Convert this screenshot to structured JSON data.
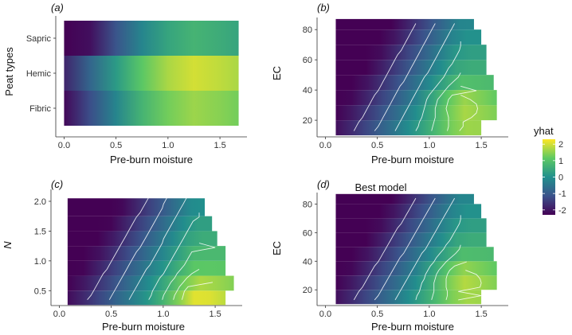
{
  "legend": {
    "title": "yhat",
    "range": [
      -2.3,
      2.3
    ],
    "ticks": [
      2,
      1,
      0,
      -1,
      -2
    ],
    "colors": [
      "#440154",
      "#3b528b",
      "#21908d",
      "#5dc963",
      "#fde725"
    ]
  },
  "chart_data": [
    {
      "type": "heatmap",
      "panel_label": "(a)",
      "title": "",
      "xlabel": "Pre-burn moisture",
      "ylabel": "Peat types",
      "xlim": [
        -0.08,
        1.76
      ],
      "x_ticks": [
        0.0,
        0.5,
        1.0,
        1.5
      ],
      "x_tick_labels": [
        "0.0",
        "0.5",
        "1.0",
        "1.5"
      ],
      "categories": [
        "Sapric",
        "Hemic",
        "Fibric"
      ],
      "x_range": [
        0.0,
        1.68
      ],
      "profile": [
        {
          "x": 0.0,
          "value": -2.2
        },
        {
          "x": 0.25,
          "value": -1.2
        },
        {
          "x": 0.5,
          "value": -0.2
        },
        {
          "x": 0.75,
          "value": 0.7
        },
        {
          "x": 1.0,
          "value": 1.3
        },
        {
          "x": 1.25,
          "value": 1.6
        },
        {
          "x": 1.5,
          "value": 1.45
        },
        {
          "x": 1.68,
          "value": 1.3
        }
      ],
      "offsets": {
        "Sapric": -0.9,
        "Hemic": 0.4,
        "Fibric": 0.0
      }
    },
    {
      "type": "heatmap",
      "panel_label": "(b)",
      "title": "",
      "xlabel": "Pre-burn moisture",
      "ylabel": "EC",
      "xlim": [
        -0.08,
        1.76
      ],
      "ylim": [
        9,
        88
      ],
      "x_ticks": [
        0.0,
        0.5,
        1.0,
        1.5
      ],
      "x_tick_labels": [
        "0.0",
        "0.5",
        "1.0",
        "1.5"
      ],
      "y_ticks": [
        20,
        40,
        60,
        80
      ],
      "y_tick_labels": [
        "20",
        "40",
        "60",
        "80"
      ],
      "bands": [
        {
          "y0": 10,
          "y1": 20,
          "x_max": 1.5
        },
        {
          "y0": 20,
          "y1": 30,
          "x_max": 1.65
        },
        {
          "y0": 30,
          "y1": 40,
          "x_max": 1.65
        },
        {
          "y0": 40,
          "y1": 50,
          "x_max": 1.62
        },
        {
          "y0": 50,
          "y1": 60,
          "x_max": 1.55
        },
        {
          "y0": 60,
          "y1": 70,
          "x_max": 1.55
        },
        {
          "y0": 70,
          "y1": 80,
          "x_max": 1.5
        },
        {
          "y0": 80,
          "y1": 87,
          "x_max": 1.43
        }
      ],
      "band_x_min": 0.1,
      "peak": {
        "x": 1.3,
        "y": 32
      },
      "trend": "moisture_and_low_EC_increase_yhat"
    },
    {
      "type": "heatmap",
      "panel_label": "(c)",
      "title": "",
      "xlabel": "Pre-burn moisture",
      "ylabel": "N",
      "xlim": [
        -0.08,
        1.76
      ],
      "ylim": [
        0.25,
        2.2
      ],
      "x_ticks": [
        0.0,
        0.5,
        1.0,
        1.5
      ],
      "x_tick_labels": [
        "0.0",
        "0.5",
        "1.0",
        "1.5"
      ],
      "y_ticks": [
        0.5,
        1.0,
        1.5,
        2.0
      ],
      "y_tick_labels": [
        "0.5",
        "1.0",
        "1.5",
        "2.0"
      ],
      "bands": [
        {
          "y0": 0.26,
          "y1": 0.5,
          "x_max": 1.6
        },
        {
          "y0": 0.5,
          "y1": 0.75,
          "x_max": 1.68
        },
        {
          "y0": 0.75,
          "y1": 1.0,
          "x_max": 1.6
        },
        {
          "y0": 1.0,
          "y1": 1.25,
          "x_max": 1.6
        },
        {
          "y0": 1.25,
          "y1": 1.5,
          "x_max": 1.52
        },
        {
          "y0": 1.5,
          "y1": 1.75,
          "x_max": 1.47
        },
        {
          "y0": 1.75,
          "y1": 2.05,
          "x_max": 1.4
        }
      ],
      "band_x_min": 0.08,
      "peak": {
        "x": 1.35,
        "y": 0.45
      },
      "trend": "moisture_and_low_N_increase_yhat"
    },
    {
      "type": "heatmap",
      "panel_label": "(d)",
      "title": "Best model",
      "xlabel": "Pre-burn moisture",
      "ylabel": "EC",
      "xlim": [
        -0.08,
        1.76
      ],
      "ylim": [
        9,
        88
      ],
      "x_ticks": [
        0.0,
        0.5,
        1.0,
        1.5
      ],
      "x_tick_labels": [
        "0.0",
        "0.5",
        "1.0",
        "1.5"
      ],
      "y_ticks": [
        20,
        40,
        60,
        80
      ],
      "y_tick_labels": [
        "20",
        "40",
        "60",
        "80"
      ],
      "bands": [
        {
          "y0": 10,
          "y1": 20,
          "x_max": 1.5
        },
        {
          "y0": 20,
          "y1": 30,
          "x_max": 1.65
        },
        {
          "y0": 30,
          "y1": 40,
          "x_max": 1.65
        },
        {
          "y0": 40,
          "y1": 50,
          "x_max": 1.62
        },
        {
          "y0": 50,
          "y1": 60,
          "x_max": 1.55
        },
        {
          "y0": 60,
          "y1": 70,
          "x_max": 1.55
        },
        {
          "y0": 70,
          "y1": 80,
          "x_max": 1.5
        },
        {
          "y0": 80,
          "y1": 87,
          "x_max": 1.43
        }
      ],
      "band_x_min": 0.1,
      "peak": {
        "x": 1.3,
        "y": 30
      },
      "trend": "moisture_and_low_EC_increase_yhat"
    }
  ]
}
